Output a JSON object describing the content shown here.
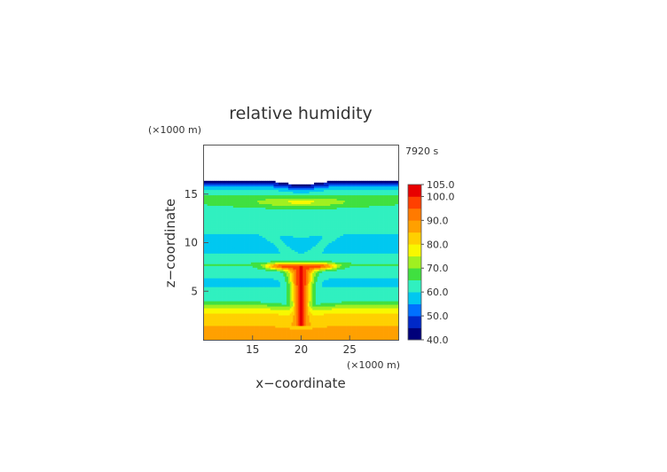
{
  "chart_data": {
    "type": "heatmap",
    "title": "relative humidity",
    "xlabel": "x−coordinate",
    "ylabel": "z−coordinate",
    "x_unit": "(×1000 m)",
    "y_unit": "(×1000 m)",
    "time_label": "7920 s",
    "xlim": [
      10,
      30
    ],
    "ylim": [
      0,
      20
    ],
    "x_ticks": [
      15,
      20,
      25
    ],
    "y_ticks": [
      5,
      10,
      15
    ],
    "grid": false,
    "colorbar": {
      "position": "right",
      "min": 40,
      "max": 105,
      "tick_labels": [
        "105.0",
        "100.0",
        "90.0",
        "80.0",
        "70.0",
        "60.0",
        "50.0",
        "40.0"
      ],
      "tick_values": [
        105,
        100,
        90,
        80,
        70,
        60,
        50,
        40
      ],
      "colors": [
        {
          "value": 40,
          "color": "#00007a"
        },
        {
          "value": 45,
          "color": "#0028c8"
        },
        {
          "value": 50,
          "color": "#0070ff"
        },
        {
          "value": 55,
          "color": "#00c8f0"
        },
        {
          "value": 60,
          "color": "#30f0c0"
        },
        {
          "value": 65,
          "color": "#40e040"
        },
        {
          "value": 70,
          "color": "#a0f020"
        },
        {
          "value": 75,
          "color": "#f8f800"
        },
        {
          "value": 80,
          "color": "#ffd000"
        },
        {
          "value": 85,
          "color": "#ffa000"
        },
        {
          "value": 90,
          "color": "#ff7a00"
        },
        {
          "value": 95,
          "color": "#ff4000"
        },
        {
          "value": 100,
          "color": "#e80000"
        },
        {
          "value": 105,
          "color": "#f08080"
        }
      ]
    },
    "profile": [
      {
        "z": 0.0,
        "rh": 86
      },
      {
        "z": 1.0,
        "rh": 86
      },
      {
        "z": 2.0,
        "rh": 84
      },
      {
        "z": 2.8,
        "rh": 80
      },
      {
        "z": 3.2,
        "rh": 76
      },
      {
        "z": 3.6,
        "rh": 70
      },
      {
        "z": 4.0,
        "rh": 64
      },
      {
        "z": 5.0,
        "rh": 61
      },
      {
        "z": 6.0,
        "rh": 59
      },
      {
        "z": 7.2,
        "rh": 62
      },
      {
        "z": 7.8,
        "rh": 66
      },
      {
        "z": 8.2,
        "rh": 62
      },
      {
        "z": 9.0,
        "rh": 60
      },
      {
        "z": 10.0,
        "rh": 58
      },
      {
        "z": 11.0,
        "rh": 60
      },
      {
        "z": 12.0,
        "rh": 61
      },
      {
        "z": 13.0,
        "rh": 63
      },
      {
        "z": 14.0,
        "rh": 65
      },
      {
        "z": 14.8,
        "rh": 66
      },
      {
        "z": 15.4,
        "rh": 62
      },
      {
        "z": 15.8,
        "rh": 56
      },
      {
        "z": 16.1,
        "rh": 48
      },
      {
        "z": 16.4,
        "rh": 42
      }
    ],
    "model_top": {
      "base_z": 16.4,
      "dip_z": 16.0,
      "dip_center_x": 20,
      "dip_width": 2.5
    },
    "features": [
      {
        "name": "moist plume",
        "center_x": 20,
        "z_bottom": 1.5,
        "z_top": 7.4,
        "rh_max": 101
      },
      {
        "name": "outflow anvil",
        "center_x": 20,
        "z": 7.6,
        "half_width": 3.5,
        "rh_max": 99
      },
      {
        "name": "upper moist layer",
        "center_x": 20,
        "z": 14.2,
        "half_width": 5,
        "rh_max": 76
      }
    ]
  }
}
